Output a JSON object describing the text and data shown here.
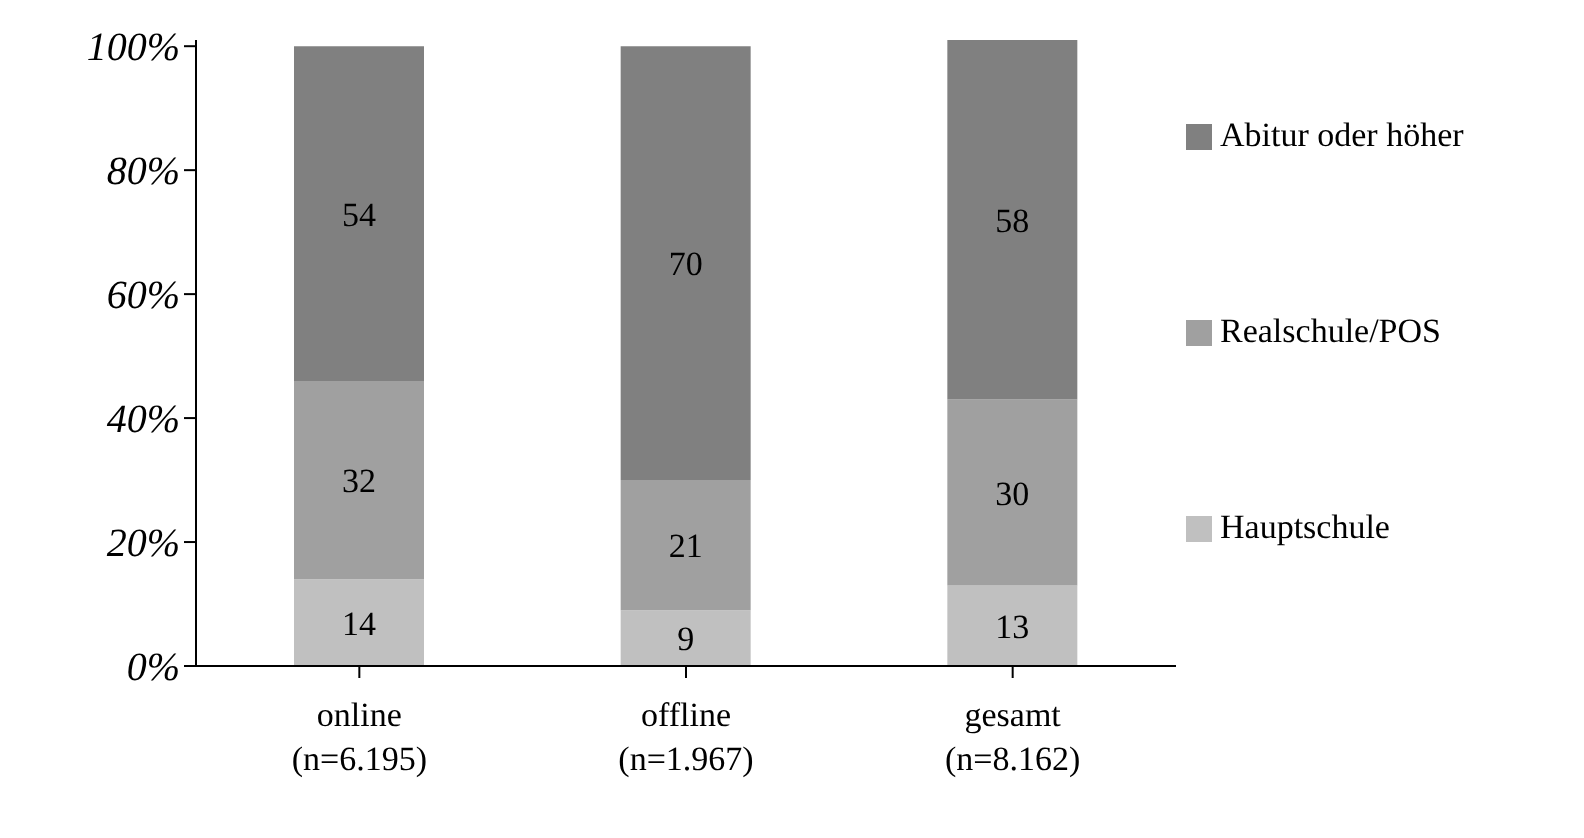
{
  "chart_data": {
    "type": "bar",
    "stacked": true,
    "categories": [
      "online\n(n=6.195)",
      "offline\n(n=1.967)",
      "gesamt\n(n=8.162)"
    ],
    "series": [
      {
        "name": "Hauptschule",
        "color": "#c0c0c0",
        "values": [
          14,
          9,
          13
        ]
      },
      {
        "name": "Realschule/POS",
        "color": "#a0a0a0",
        "values": [
          32,
          21,
          30
        ]
      },
      {
        "name": "Abitur oder höher",
        "color": "#808080",
        "values": [
          54,
          70,
          58
        ]
      }
    ],
    "ylim": [
      0,
      101
    ],
    "yticks": [
      {
        "value": 0,
        "label": "0%"
      },
      {
        "value": 20,
        "label": "20%"
      },
      {
        "value": 40,
        "label": "40%"
      },
      {
        "value": 60,
        "label": "60%"
      },
      {
        "value": 80,
        "label": "80%"
      },
      {
        "value": 100,
        "label": "100%"
      }
    ],
    "data_labels": true,
    "grid": false,
    "legend": "right"
  }
}
